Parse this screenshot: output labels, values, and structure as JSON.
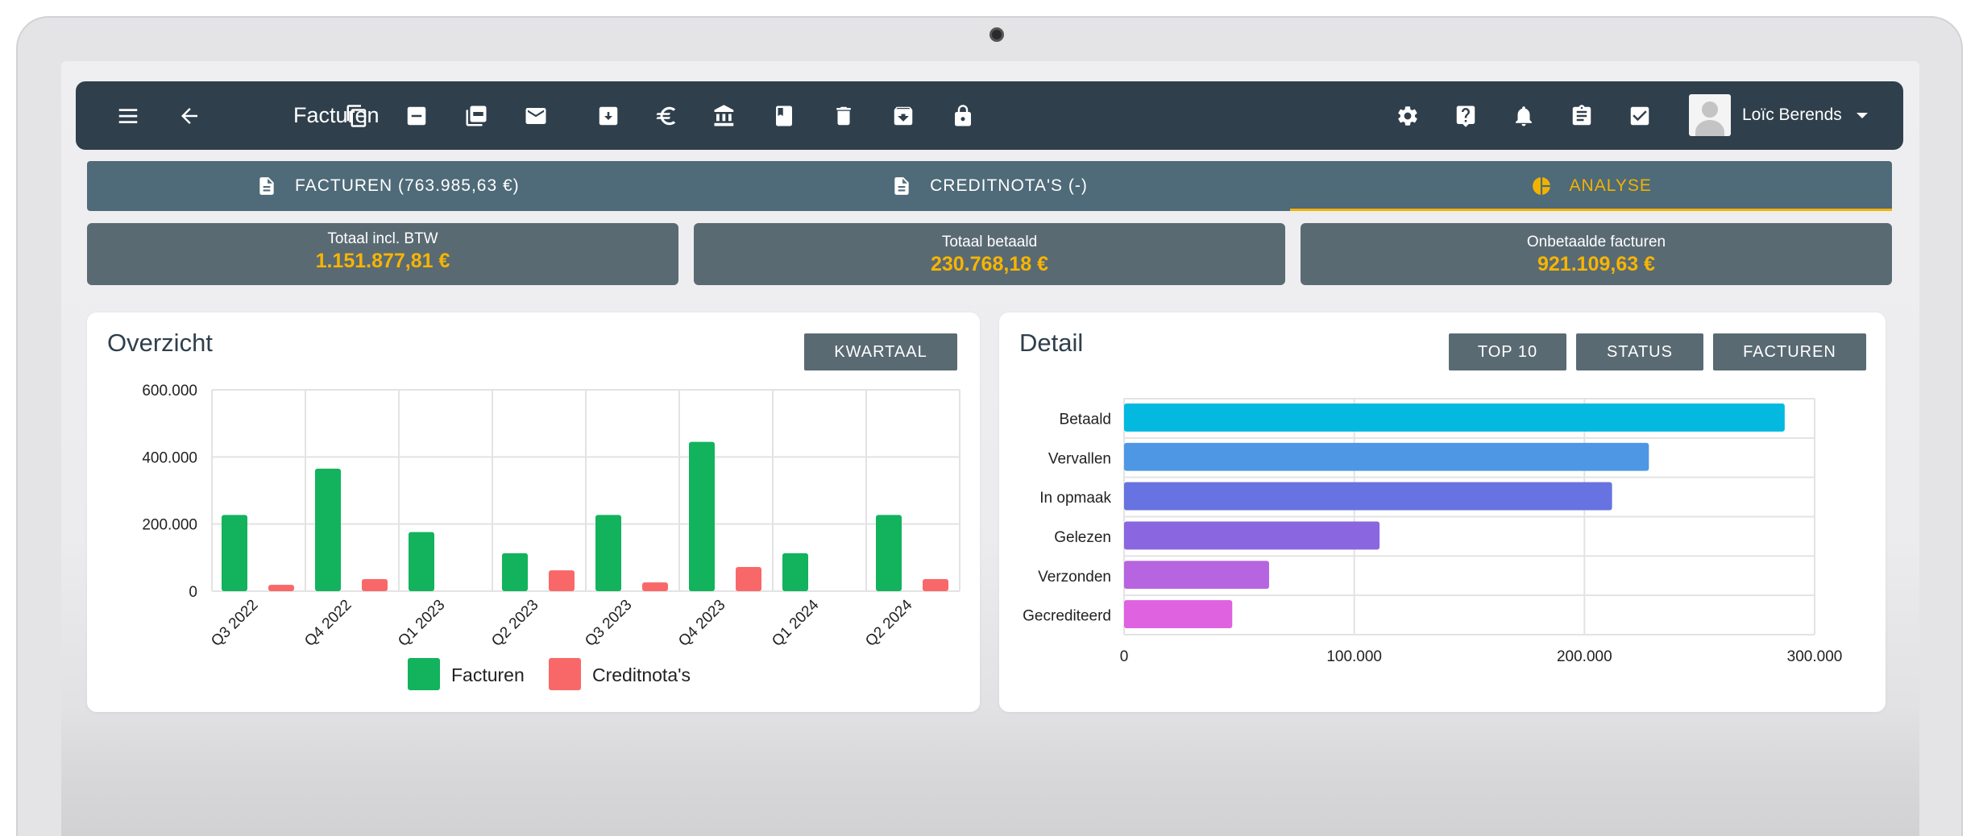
{
  "toolbar": {
    "title": "Facturen",
    "user_name": "Loïc Berends"
  },
  "tabs": [
    {
      "label": "FACTUREN (763.985,63 €)"
    },
    {
      "label": "CREDITNOTA'S (-)"
    },
    {
      "label": "ANALYSE"
    }
  ],
  "stats": [
    {
      "label": "Totaal incl. BTW",
      "value": "1.151.877,81 €"
    },
    {
      "label": "Totaal betaald",
      "value": "230.768,18 €"
    },
    {
      "label": "Onbetaalde facturen",
      "value": "921.109,63 €"
    }
  ],
  "overview": {
    "title": "Overzicht",
    "button": "KWARTAAL"
  },
  "detail": {
    "title": "Detail",
    "buttons": [
      "TOP 10",
      "STATUS",
      "FACTUREN"
    ]
  },
  "chart_data": [
    {
      "type": "bar",
      "categories": [
        "Q3 2022",
        "Q4 2022",
        "Q1 2023",
        "Q2 2023",
        "Q3 2023",
        "Q4 2023",
        "Q1 2024",
        "Q2 2024"
      ],
      "series": [
        {
          "name": "Facturen",
          "color": "#12b35c",
          "values": [
            227000,
            365000,
            176000,
            113000,
            227000,
            445000,
            113000,
            227000
          ]
        },
        {
          "name": "Creditnota's",
          "color": "#f96868",
          "values": [
            19000,
            36000,
            0,
            62000,
            26000,
            72000,
            0,
            36000
          ]
        }
      ],
      "ylim": [
        0,
        600000
      ],
      "yticks": [
        "0",
        "200.000",
        "400.000",
        "600.000"
      ],
      "ytick_values": [
        0,
        200000,
        400000,
        600000
      ],
      "grid": true,
      "legend": "bottom"
    },
    {
      "type": "bar",
      "orientation": "horizontal",
      "categories": [
        "Betaald",
        "Vervallen",
        "In opmaak",
        "Gelezen",
        "Verzonden",
        "Gecrediteerd"
      ],
      "values": [
        287000,
        228000,
        212000,
        111000,
        63000,
        47000
      ],
      "colors": [
        "#03b9e0",
        "#4d97e5",
        "#6773e0",
        "#8a67e0",
        "#b664e0",
        "#df62e0"
      ],
      "xlim": [
        0,
        300000
      ],
      "xticks": [
        "0",
        "100.000",
        "200.000",
        "300.000"
      ],
      "xtick_values": [
        0,
        100000,
        200000,
        300000
      ],
      "grid": true
    }
  ]
}
